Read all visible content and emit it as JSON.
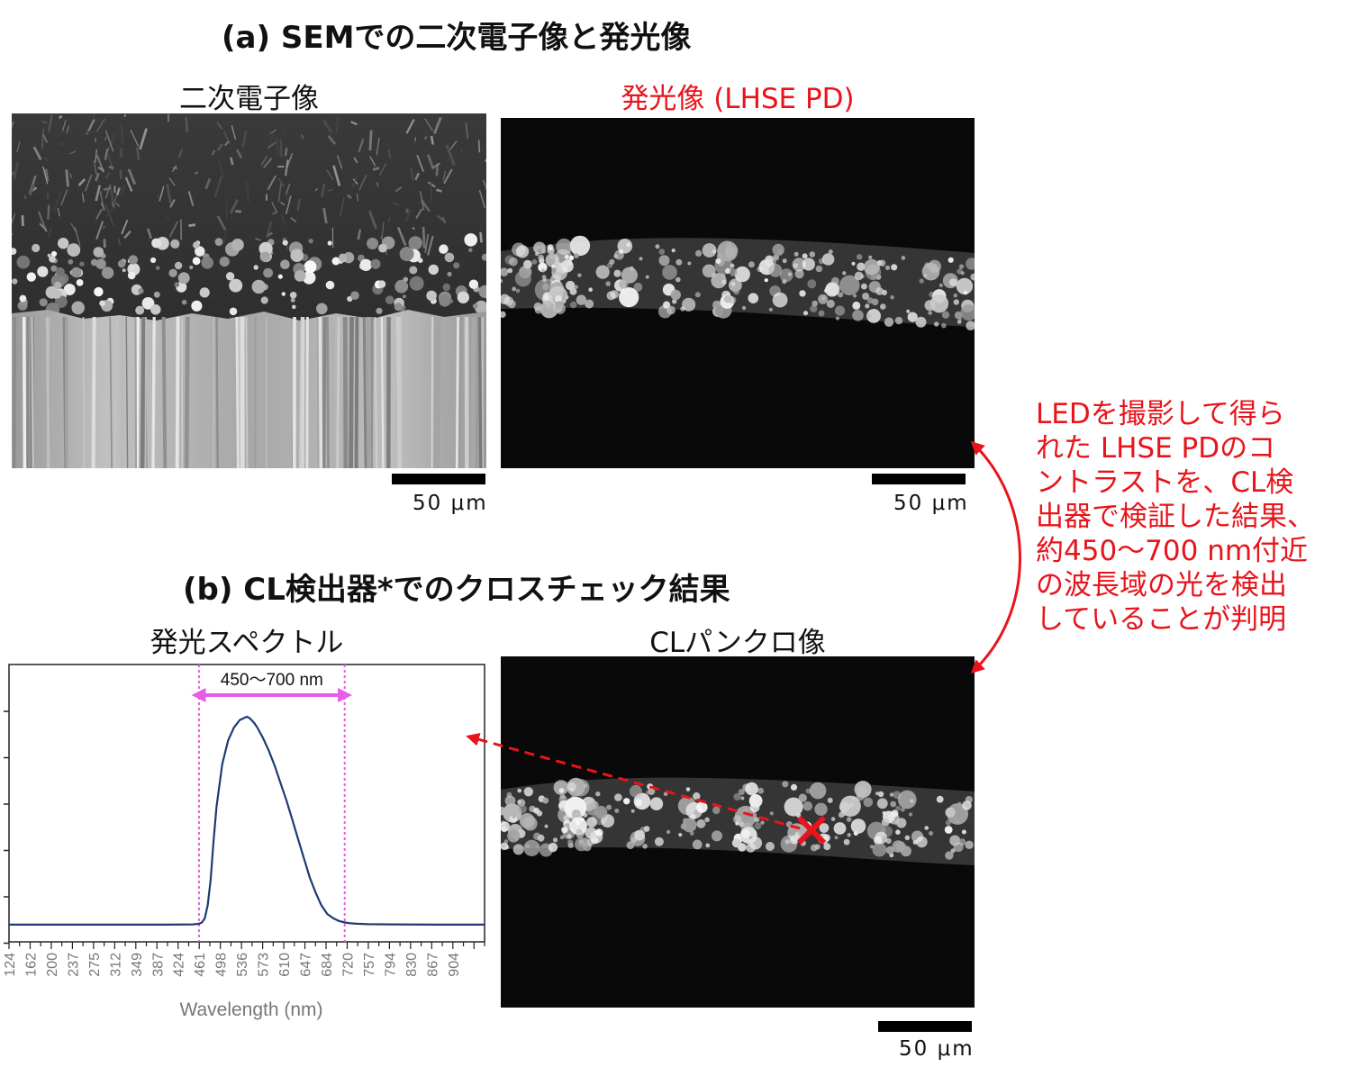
{
  "section_a": {
    "title": "(a) SEMでの二次電子像と発光像"
  },
  "section_b": {
    "title": "(b) CL検出器*でのクロスチェック結果"
  },
  "panels": {
    "secondary_electron": {
      "caption": "二次電子像",
      "scale": "50 μm"
    },
    "emission": {
      "caption": "発光像 (LHSE PD)",
      "scale": "50 μm"
    },
    "spectrum": {
      "caption": "発光スペクトル"
    },
    "cl_panchro": {
      "caption": "CLパンクロ像",
      "scale": "50 μm"
    }
  },
  "annotation": {
    "lines": [
      "LEDを撮影して得ら",
      "れた LHSE PDのコ",
      "ントラストを、CL検",
      "出器で検証した結果、",
      "約450～700 nm付近",
      "の波長域の光を検出",
      "していることが判明"
    ]
  },
  "colors": {
    "accent_red": "#e8141b",
    "spectrum_line": "#1f3a73",
    "band_marker": "#e85ce8"
  },
  "chart_data": {
    "type": "line",
    "xlabel": "Wavelength (nm)",
    "ylabel": "",
    "x_ticks": [
      "124",
      "162",
      "200",
      "237",
      "275",
      "312",
      "349",
      "387",
      "424",
      "461",
      "498",
      "536",
      "573",
      "610",
      "647",
      "684",
      "720",
      "757",
      "794",
      "830",
      "867",
      "904"
    ],
    "xlim": [
      124,
      940
    ],
    "ylim": [
      0,
      1
    ],
    "band": {
      "label": "450～700 nm",
      "start": 450,
      "end": 700
    },
    "series": [
      {
        "x": [
          124,
          200,
          300,
          400,
          440,
          450,
          455,
          460,
          465,
          470,
          475,
          480,
          490,
          500,
          510,
          520,
          528,
          532,
          536,
          540,
          545,
          550,
          560,
          570,
          580,
          590,
          600,
          610,
          620,
          630,
          640,
          650,
          660,
          670,
          680,
          690,
          700,
          710,
          720,
          740,
          780,
          850,
          940
        ],
        "y": [
          0.03,
          0.03,
          0.03,
          0.03,
          0.031,
          0.034,
          0.04,
          0.06,
          0.12,
          0.24,
          0.42,
          0.58,
          0.78,
          0.89,
          0.95,
          0.985,
          0.995,
          1.0,
          0.995,
          0.985,
          0.97,
          0.95,
          0.9,
          0.84,
          0.77,
          0.69,
          0.61,
          0.52,
          0.43,
          0.34,
          0.25,
          0.18,
          0.12,
          0.08,
          0.06,
          0.047,
          0.04,
          0.036,
          0.034,
          0.032,
          0.031,
          0.03,
          0.03
        ]
      }
    ]
  }
}
